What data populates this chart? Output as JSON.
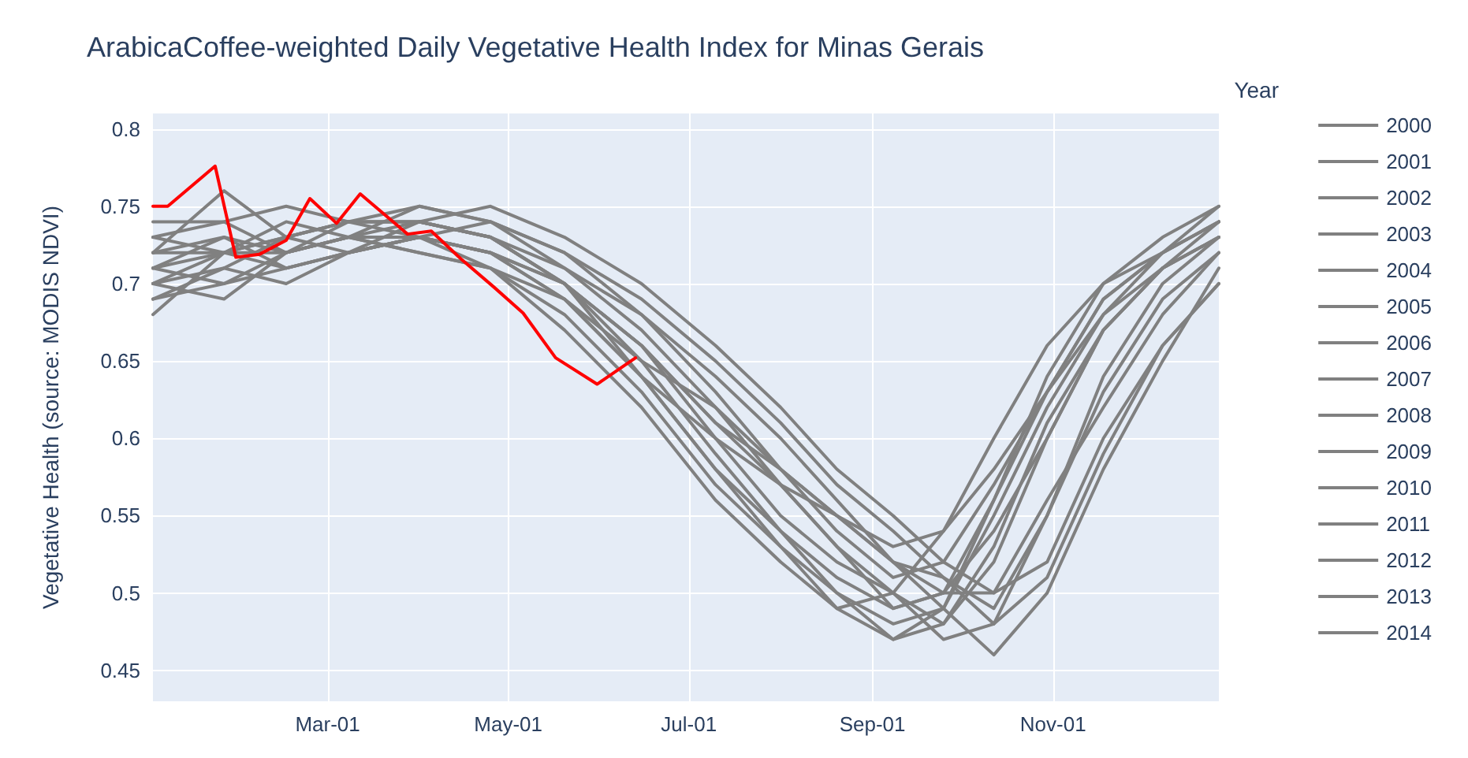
{
  "chart_data": {
    "type": "line",
    "title": "ArabicaCoffee-weighted Daily Vegetative Health Index for Minas Gerais",
    "ylabel": "Vegetative Health (source: MODIS NDVI)",
    "legend_title": "Year",
    "legend": "right",
    "grid": true,
    "marker": "none",
    "line_style": "solid",
    "x": [
      "--01-01",
      "--01-25",
      "--02-15",
      "--03-08",
      "--04-01",
      "--04-25",
      "--05-20",
      "--06-15",
      "--07-10",
      "--08-01",
      "--08-20",
      "--09-08",
      "--09-25",
      "--10-12",
      "--10-30",
      "--11-18",
      "--12-08",
      "--12-27"
    ],
    "xlim": [
      "--01-01",
      "--12-27"
    ],
    "xticks": [
      {
        "value": "--03-01",
        "label": "Mar-01"
      },
      {
        "value": "--05-01",
        "label": "May-01"
      },
      {
        "value": "--07-01",
        "label": "Jul-01"
      },
      {
        "value": "--09-01",
        "label": "Sep-01"
      },
      {
        "value": "--11-01",
        "label": "Nov-01"
      }
    ],
    "ylim": [
      0.43,
      0.81
    ],
    "yticks": [
      0.45,
      0.5,
      0.55,
      0.6,
      0.65,
      0.7,
      0.75,
      0.8
    ],
    "series": [
      {
        "name": "2000",
        "color": "#808080",
        "values": [
          0.7,
          0.72,
          0.73,
          0.74,
          0.73,
          0.72,
          0.69,
          0.64,
          0.58,
          0.54,
          0.51,
          0.49,
          0.5,
          0.56,
          0.64,
          0.7,
          0.73,
          0.75
        ]
      },
      {
        "name": "2001",
        "color": "#808080",
        "values": [
          0.72,
          0.76,
          0.73,
          0.74,
          0.74,
          0.73,
          0.7,
          0.66,
          0.61,
          0.57,
          0.53,
          0.5,
          0.48,
          0.52,
          0.6,
          0.67,
          0.71,
          0.74
        ]
      },
      {
        "name": "2002",
        "color": "#808080",
        "values": [
          0.74,
          0.74,
          0.72,
          0.73,
          0.75,
          0.74,
          0.72,
          0.68,
          0.63,
          0.58,
          0.55,
          0.52,
          0.51,
          0.49,
          0.55,
          0.63,
          0.69,
          0.72
        ]
      },
      {
        "name": "2003",
        "color": "#808080",
        "values": [
          0.69,
          0.7,
          0.71,
          0.72,
          0.73,
          0.72,
          0.7,
          0.66,
          0.6,
          0.55,
          0.52,
          0.5,
          0.47,
          0.48,
          0.55,
          0.64,
          0.7,
          0.73
        ]
      },
      {
        "name": "2004",
        "color": "#808080",
        "values": [
          0.71,
          0.7,
          0.72,
          0.74,
          0.74,
          0.73,
          0.7,
          0.65,
          0.59,
          0.54,
          0.5,
          0.48,
          0.49,
          0.55,
          0.62,
          0.68,
          0.72,
          0.74
        ]
      },
      {
        "name": "2005",
        "color": "#808080",
        "values": [
          0.73,
          0.72,
          0.74,
          0.73,
          0.72,
          0.71,
          0.68,
          0.63,
          0.57,
          0.53,
          0.5,
          0.47,
          0.48,
          0.53,
          0.61,
          0.67,
          0.71,
          0.73
        ]
      },
      {
        "name": "2006",
        "color": "#808080",
        "values": [
          0.7,
          0.71,
          0.73,
          0.72,
          0.74,
          0.75,
          0.73,
          0.7,
          0.66,
          0.62,
          0.58,
          0.55,
          0.52,
          0.5,
          0.52,
          0.6,
          0.66,
          0.7
        ]
      },
      {
        "name": "2007",
        "color": "#808080",
        "values": [
          0.68,
          0.72,
          0.72,
          0.73,
          0.73,
          0.71,
          0.67,
          0.62,
          0.56,
          0.52,
          0.49,
          0.5,
          0.54,
          0.6,
          0.66,
          0.7,
          0.72,
          0.74
        ]
      },
      {
        "name": "2008",
        "color": "#808080",
        "values": [
          0.72,
          0.73,
          0.72,
          0.73,
          0.74,
          0.73,
          0.71,
          0.68,
          0.64,
          0.6,
          0.56,
          0.52,
          0.49,
          0.46,
          0.5,
          0.58,
          0.65,
          0.71
        ]
      },
      {
        "name": "2009",
        "color": "#808080",
        "values": [
          0.69,
          0.71,
          0.7,
          0.72,
          0.73,
          0.72,
          0.69,
          0.64,
          0.6,
          0.57,
          0.55,
          0.53,
          0.54,
          0.58,
          0.63,
          0.68,
          0.71,
          0.73
        ]
      },
      {
        "name": "2010",
        "color": "#808080",
        "values": [
          0.73,
          0.74,
          0.75,
          0.74,
          0.74,
          0.73,
          0.7,
          0.66,
          0.61,
          0.58,
          0.55,
          0.52,
          0.5,
          0.5,
          0.56,
          0.62,
          0.68,
          0.72
        ]
      },
      {
        "name": "2011",
        "color": "#808080",
        "values": [
          0.71,
          0.73,
          0.71,
          0.72,
          0.73,
          0.74,
          0.72,
          0.69,
          0.65,
          0.61,
          0.57,
          0.54,
          0.51,
          0.48,
          0.51,
          0.59,
          0.66,
          0.7
        ]
      },
      {
        "name": "2012",
        "color": "#808080",
        "values": [
          0.7,
          0.69,
          0.72,
          0.73,
          0.72,
          0.71,
          0.69,
          0.65,
          0.62,
          0.58,
          0.54,
          0.51,
          0.52,
          0.57,
          0.63,
          0.69,
          0.72,
          0.74
        ]
      },
      {
        "name": "2013",
        "color": "#808080",
        "values": [
          0.72,
          0.72,
          0.73,
          0.74,
          0.75,
          0.74,
          0.71,
          0.67,
          0.62,
          0.57,
          0.53,
          0.49,
          0.5,
          0.54,
          0.6,
          0.67,
          0.71,
          0.73
        ]
      },
      {
        "name": "2014",
        "color": "#808080",
        "values": [
          0.71,
          0.72,
          0.71,
          0.72,
          0.73,
          0.72,
          0.7,
          0.64,
          0.58,
          0.53,
          0.49,
          0.47,
          0.49,
          0.56,
          0.63,
          0.69,
          0.72,
          0.75
        ]
      },
      {
        "color": "#ff0000",
        "x": [
          "--01-01",
          "--01-06",
          "--01-22",
          "--01-29",
          "--02-06",
          "--02-15",
          "--02-23",
          "--03-04",
          "--03-12",
          "--03-28",
          "--04-05",
          "--04-15",
          "--04-26",
          "--05-06",
          "--05-17",
          "--05-31",
          "--06-13"
        ],
        "values": [
          0.75,
          0.75,
          0.776,
          0.717,
          0.719,
          0.728,
          0.755,
          0.739,
          0.758,
          0.732,
          0.734,
          0.716,
          0.698,
          0.681,
          0.652,
          0.635,
          0.652
        ]
      }
    ]
  }
}
